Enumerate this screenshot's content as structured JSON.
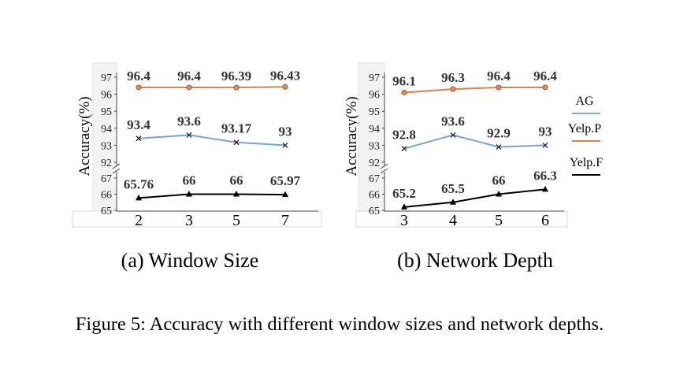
{
  "top_fragment": "",
  "legend": [
    {
      "label": "AG",
      "color": "#7ba3d0"
    },
    {
      "label": "Yelp.P",
      "color": "#d9824a"
    },
    {
      "label": "Yelp.F",
      "color": "#000000"
    }
  ],
  "figure_caption": "Figure 5: Accuracy with different window sizes and network depths.",
  "chart_data": [
    {
      "type": "line",
      "subcaption": "(a) Window Size",
      "ylabel": "Accuracy(%)",
      "xlabel": "",
      "categories": [
        "2",
        "3",
        "5",
        "7"
      ],
      "yticks": [
        "97",
        "96",
        "95",
        "94",
        "93",
        "92",
        "67",
        "66",
        "65"
      ],
      "broken_axis": true,
      "series": [
        {
          "name": "Yelp.P",
          "color": "#d9824a",
          "marker": "circle",
          "values": [
            96.4,
            96.4,
            96.39,
            96.43
          ],
          "labels": [
            "96.4",
            "96.4",
            "96.39",
            "96.43"
          ]
        },
        {
          "name": "AG",
          "color": "#7ba3d0",
          "marker": "x",
          "values": [
            93.4,
            93.6,
            93.17,
            93
          ],
          "labels": [
            "93.4",
            "93.6",
            "93.17",
            "93"
          ]
        },
        {
          "name": "Yelp.F",
          "color": "#000000",
          "marker": "triangle",
          "values": [
            65.76,
            66,
            66,
            65.97
          ],
          "labels": [
            "65.76",
            "66",
            "66",
            "65.97"
          ]
        }
      ]
    },
    {
      "type": "line",
      "subcaption": "(b) Network Depth",
      "ylabel": "Accuracy(%)",
      "xlabel": "",
      "categories": [
        "3",
        "4",
        "5",
        "6"
      ],
      "yticks": [
        "97",
        "96",
        "95",
        "94",
        "93",
        "92",
        "67",
        "66",
        "65"
      ],
      "broken_axis": true,
      "series": [
        {
          "name": "Yelp.P",
          "color": "#d9824a",
          "marker": "circle",
          "values": [
            96.1,
            96.3,
            96.4,
            96.4
          ],
          "labels": [
            "96.1",
            "96.3",
            "96.4",
            "96.4"
          ]
        },
        {
          "name": "AG",
          "color": "#7ba3d0",
          "marker": "x",
          "values": [
            92.8,
            93.6,
            92.9,
            93
          ],
          "labels": [
            "92.8",
            "93.6",
            "92.9",
            "93"
          ]
        },
        {
          "name": "Yelp.F",
          "color": "#000000",
          "marker": "triangle",
          "values": [
            65.2,
            65.5,
            66,
            66.3
          ],
          "labels": [
            "65.2",
            "65.5",
            "66",
            "66.3"
          ]
        }
      ]
    }
  ]
}
